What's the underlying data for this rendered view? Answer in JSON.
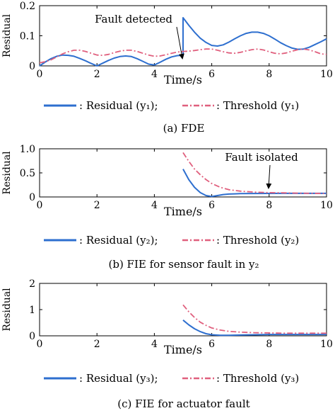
{
  "colors": {
    "residual": "#2e6fcf",
    "threshold": "#e0607e",
    "axis": "#000000"
  },
  "chart_data": [
    {
      "type": "line",
      "caption": "(a) FDE",
      "xlabel": "Time/s",
      "ylabel": "Residual",
      "xlim": [
        0,
        10
      ],
      "ylim": [
        0,
        0.2
      ],
      "xticks": [
        "0",
        "2",
        "4",
        "6",
        "8",
        "10"
      ],
      "yticks": [
        "0",
        "0.1",
        "0.2"
      ],
      "grid": false,
      "legend": {
        "residual": ": Residual (y₁);",
        "threshold": ":  Threshold (y₁)"
      },
      "annotation": {
        "text": "Fault detected",
        "x": 5,
        "y": 0.035
      },
      "series": [
        {
          "name": "Residual (y₁)",
          "style": "solid",
          "color": "#2e6fcf",
          "x": [
            0,
            0.2,
            0.4,
            0.6,
            0.8,
            1.0,
            1.2,
            1.4,
            1.6,
            1.8,
            2.0,
            2.2,
            2.4,
            2.6,
            2.8,
            3.0,
            3.2,
            3.4,
            3.6,
            3.8,
            4.0,
            4.2,
            4.4,
            4.6,
            4.8,
            5.0,
            5.0,
            5.2,
            5.4,
            5.6,
            5.8,
            6.0,
            6.2,
            6.4,
            6.6,
            6.8,
            7.0,
            7.2,
            7.4,
            7.6,
            7.8,
            8.0,
            8.2,
            8.4,
            8.6,
            8.8,
            9.0,
            9.2,
            9.4,
            9.6,
            9.8,
            10.0
          ],
          "y": [
            0,
            0.013,
            0.024,
            0.032,
            0.036,
            0.035,
            0.032,
            0.025,
            0.017,
            0.008,
            0,
            0.009,
            0.018,
            0.026,
            0.031,
            0.033,
            0.031,
            0.024,
            0.015,
            0.006,
            0.003,
            0.012,
            0.022,
            0.03,
            0.034,
            0.035,
            0.16,
            0.135,
            0.112,
            0.092,
            0.078,
            0.068,
            0.066,
            0.07,
            0.079,
            0.09,
            0.1,
            0.108,
            0.112,
            0.112,
            0.108,
            0.1,
            0.089,
            0.077,
            0.067,
            0.059,
            0.055,
            0.056,
            0.062,
            0.071,
            0.08,
            0.09
          ]
        },
        {
          "name": "Threshold (y₁)",
          "style": "dashdot",
          "color": "#e0607e",
          "x": [
            0,
            0.2,
            0.4,
            0.6,
            0.8,
            1.0,
            1.2,
            1.4,
            1.6,
            1.8,
            2.0,
            2.2,
            2.4,
            2.6,
            2.8,
            3.0,
            3.2,
            3.4,
            3.6,
            3.8,
            4.0,
            4.2,
            4.4,
            4.6,
            4.8,
            5.0,
            5.2,
            5.4,
            5.6,
            5.8,
            6.0,
            6.2,
            6.4,
            6.6,
            6.8,
            7.0,
            7.2,
            7.4,
            7.6,
            7.8,
            8.0,
            8.2,
            8.4,
            8.6,
            8.8,
            9.0,
            9.2,
            9.4,
            9.6,
            9.8,
            10.0
          ],
          "y": [
            0.01,
            0.014,
            0.02,
            0.03,
            0.04,
            0.047,
            0.052,
            0.052,
            0.048,
            0.042,
            0.036,
            0.035,
            0.038,
            0.044,
            0.049,
            0.052,
            0.052,
            0.048,
            0.042,
            0.036,
            0.032,
            0.033,
            0.037,
            0.042,
            0.046,
            0.048,
            0.049,
            0.051,
            0.054,
            0.056,
            0.056,
            0.052,
            0.047,
            0.043,
            0.042,
            0.045,
            0.05,
            0.054,
            0.056,
            0.053,
            0.047,
            0.042,
            0.04,
            0.043,
            0.049,
            0.054,
            0.056,
            0.053,
            0.047,
            0.04,
            0.038
          ]
        }
      ]
    },
    {
      "type": "line",
      "caption": "(b) FIE for sensor fault in y₂",
      "xlabel": "Time/s",
      "ylabel": "Residual",
      "xlim": [
        0,
        10
      ],
      "ylim": [
        0,
        1.0
      ],
      "xticks": [
        "0",
        "2",
        "4",
        "6",
        "8",
        "10"
      ],
      "yticks": [
        "0",
        "0.5",
        "1.0"
      ],
      "grid": false,
      "legend": {
        "residual": ": Residual (y₂);",
        "threshold": ":  Threshold (y₂)"
      },
      "annotation": {
        "text": "Fault isolated",
        "x": 8,
        "y": 0.09
      },
      "series": [
        {
          "name": "Residual (y₂)",
          "style": "solid",
          "color": "#2e6fcf",
          "x": [
            5.0,
            5.2,
            5.4,
            5.6,
            5.8,
            6.0,
            6.2,
            6.4,
            6.6,
            6.8,
            7.0,
            7.5,
            8.0,
            8.5,
            9.0,
            9.5,
            10.0
          ],
          "y": [
            0.58,
            0.36,
            0.2,
            0.09,
            0.03,
            0.01,
            0.03,
            0.05,
            0.06,
            0.065,
            0.07,
            0.072,
            0.074,
            0.075,
            0.075,
            0.075,
            0.075
          ]
        },
        {
          "name": "Threshold (y₂)",
          "style": "dashdot",
          "color": "#e0607e",
          "x": [
            5.0,
            5.2,
            5.4,
            5.6,
            5.8,
            6.0,
            6.3,
            6.6,
            7.0,
            7.5,
            8.0,
            8.5,
            9.0,
            9.5,
            10.0
          ],
          "y": [
            0.92,
            0.74,
            0.58,
            0.46,
            0.36,
            0.28,
            0.2,
            0.15,
            0.12,
            0.1,
            0.09,
            0.085,
            0.08,
            0.075,
            0.07
          ]
        }
      ]
    },
    {
      "type": "line",
      "caption": "(c) FIE for actuator fault",
      "xlabel": "Time/s",
      "ylabel": "Residual",
      "xlim": [
        0,
        10
      ],
      "ylim": [
        0,
        2
      ],
      "xticks": [
        "0",
        "2",
        "4",
        "6",
        "8",
        "10"
      ],
      "yticks": [
        "0",
        "1",
        "2"
      ],
      "grid": false,
      "legend": {
        "residual": ": Residual (y₃);",
        "threshold": ":  Threshold (y₃)"
      },
      "series": [
        {
          "name": "Residual (y₃)",
          "style": "solid",
          "color": "#2e6fcf",
          "x": [
            5.0,
            5.2,
            5.4,
            5.6,
            5.8,
            6.0,
            6.3,
            6.6,
            7.0,
            7.5,
            8.0,
            9.0,
            10.0
          ],
          "y": [
            0.6,
            0.42,
            0.27,
            0.16,
            0.08,
            0.04,
            0.02,
            0.02,
            0.03,
            0.04,
            0.05,
            0.05,
            0.05
          ]
        },
        {
          "name": "Threshold (y₃)",
          "style": "dashdot",
          "color": "#e0607e",
          "x": [
            5.0,
            5.2,
            5.4,
            5.6,
            5.8,
            6.0,
            6.3,
            6.6,
            7.0,
            7.5,
            8.0,
            8.5,
            9.0,
            9.5,
            10.0
          ],
          "y": [
            1.18,
            0.92,
            0.7,
            0.52,
            0.4,
            0.3,
            0.22,
            0.17,
            0.14,
            0.12,
            0.11,
            0.1,
            0.1,
            0.1,
            0.1
          ]
        }
      ]
    }
  ]
}
